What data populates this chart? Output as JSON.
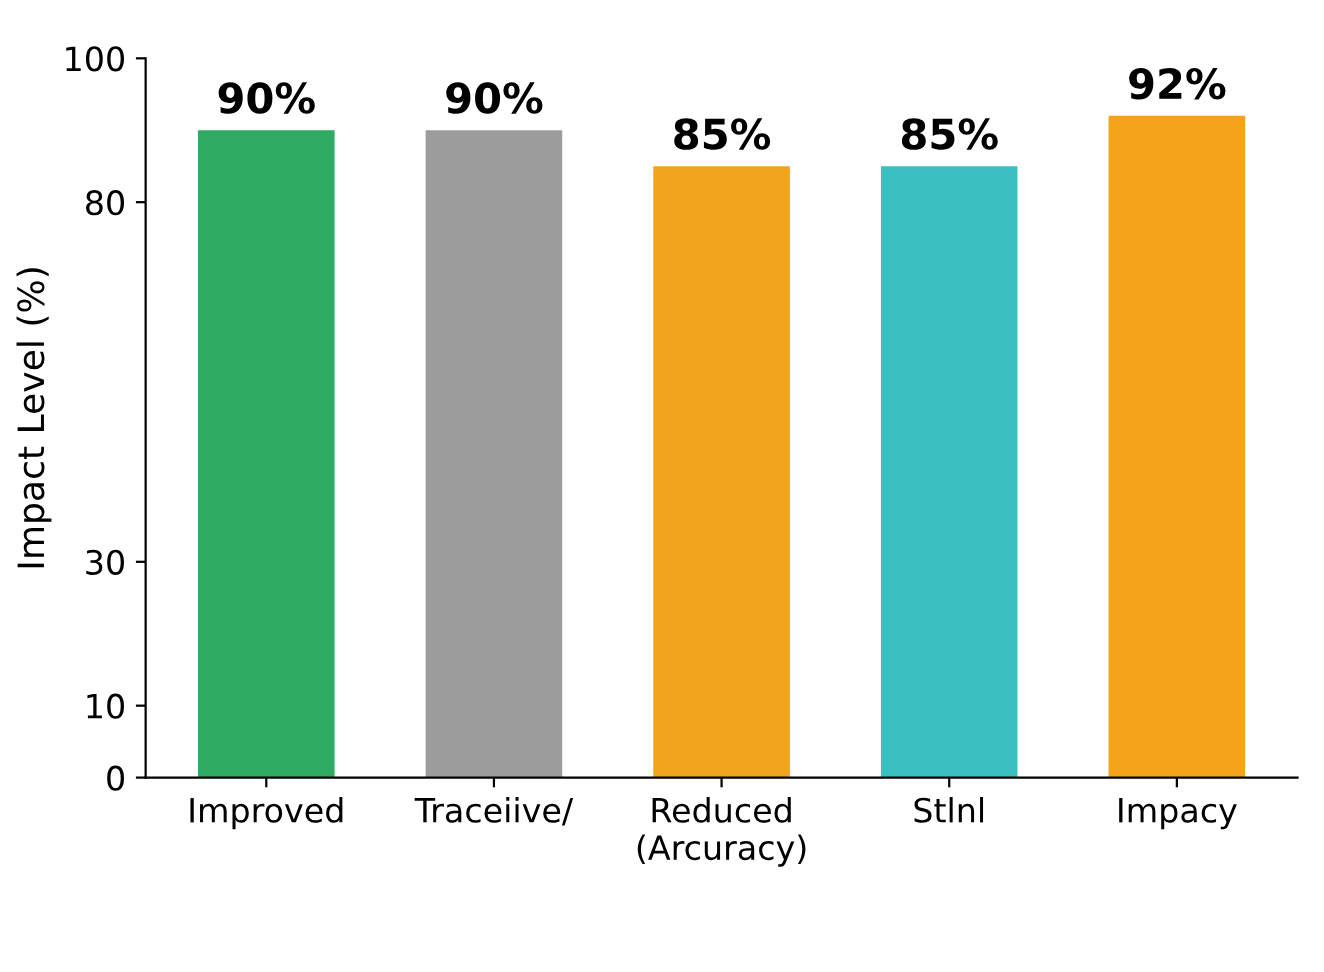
{
  "chart_data": {
    "type": "bar",
    "ylabel": "Impact Level (%)",
    "categories": [
      "Improved",
      "Traceiive/",
      "Reduced\n(Arcuracy)",
      "Stlnl",
      "Impacy"
    ],
    "values": [
      90,
      90,
      85,
      85,
      92
    ],
    "colors": [
      "#2eaa62",
      "#9c9c9c",
      "#f2a41e",
      "#3cbfc0",
      "#f5a31a"
    ],
    "value_labels": [
      "90%",
      "90%",
      "85%",
      "85%",
      "92%"
    ],
    "ylim": [
      0,
      100
    ],
    "yticks": [
      0,
      10,
      30,
      80,
      100
    ],
    "grid": false
  }
}
